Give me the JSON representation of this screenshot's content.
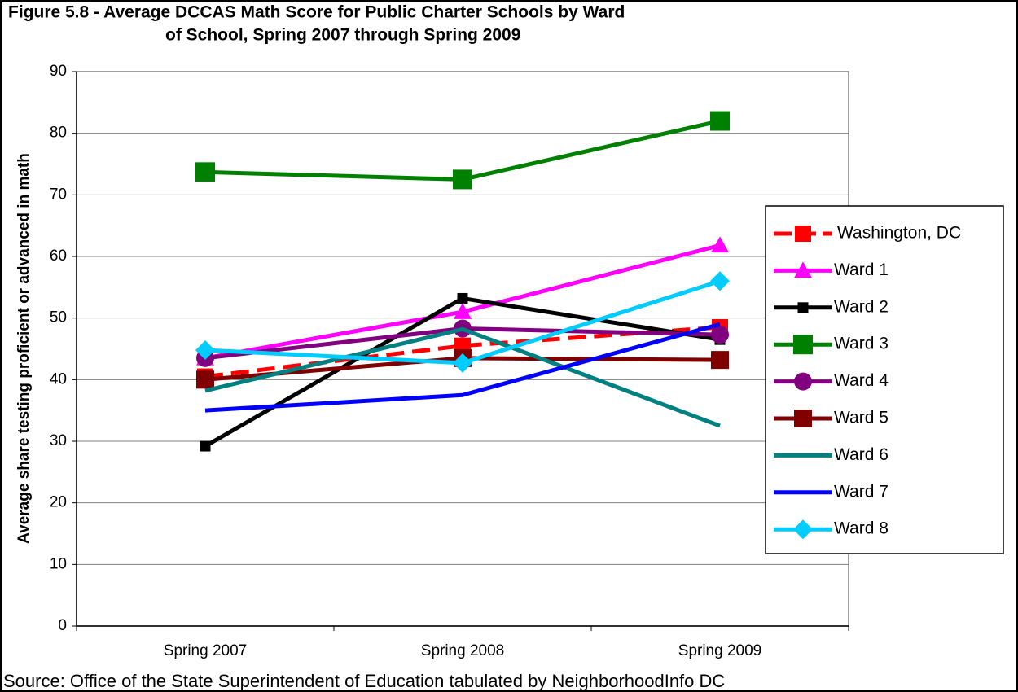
{
  "chart_data": {
    "type": "line",
    "title": [
      "Figure 5.8 - Average DCCAS Math Score for Public Charter Schools by Ward",
      "of School, Spring 2007 through Spring 2009"
    ],
    "ylabel": "Average share testing proficient or advanced in math",
    "source": "Source: Office of the State Superintendent of Education tabulated by NeighborhoodInfo DC",
    "categories": [
      "Spring 2007",
      "Spring 2008",
      "Spring 2009"
    ],
    "ylim": [
      0,
      90
    ],
    "yticks": [
      0,
      10,
      20,
      30,
      40,
      50,
      60,
      70,
      80,
      90
    ],
    "grid": true,
    "legend": "right",
    "series": [
      {
        "name": "Washington, DC",
        "color": "#ff0000",
        "dash": true,
        "marker": "square",
        "marker_size": 20,
        "values": [
          40.5,
          45.5,
          48.5
        ]
      },
      {
        "name": "Ward 1",
        "color": "#ff00ff",
        "marker": "triangle",
        "marker_size": 22,
        "values": [
          43.5,
          51,
          61.8
        ]
      },
      {
        "name": "Ward 2",
        "color": "#000000",
        "marker": "square",
        "marker_size": 13,
        "values": [
          29.2,
          53.2,
          46.5
        ]
      },
      {
        "name": "Ward 3",
        "color": "#008000",
        "marker": "square",
        "marker_size": 24,
        "values": [
          73.7,
          72.5,
          82
        ]
      },
      {
        "name": "Ward 4",
        "color": "#800080",
        "marker": "circle",
        "marker_size": 22,
        "values": [
          43.5,
          48.3,
          47.3
        ]
      },
      {
        "name": "Ward 5",
        "color": "#800000",
        "marker": "square",
        "marker_size": 22,
        "values": [
          40,
          43.5,
          43.2
        ]
      },
      {
        "name": "Ward 6",
        "color": "#008080",
        "marker": "none",
        "values": [
          38.2,
          48.2,
          32.5
        ]
      },
      {
        "name": "Ward 7",
        "color": "#0000ff",
        "marker": "none",
        "values": [
          35,
          37.5,
          49
        ]
      },
      {
        "name": "Ward 8",
        "color": "#00ccff",
        "marker": "diamond",
        "marker_size": 24,
        "values": [
          44.8,
          42.7,
          56
        ]
      }
    ]
  }
}
